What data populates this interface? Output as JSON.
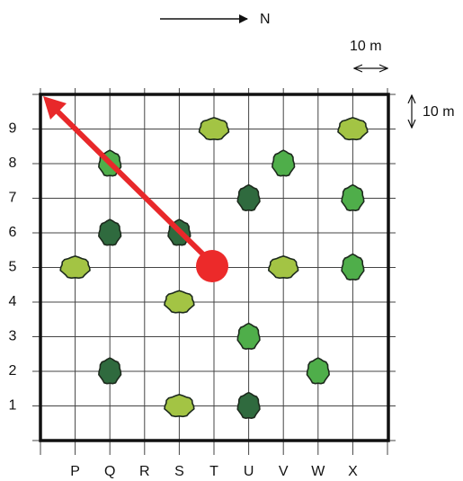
{
  "north_label": "N",
  "scale": {
    "horizontal": "10 m",
    "vertical": "10 m"
  },
  "columns": [
    "P",
    "Q",
    "R",
    "S",
    "T",
    "U",
    "V",
    "W",
    "X"
  ],
  "rows": [
    1,
    2,
    3,
    4,
    5,
    6,
    7,
    8,
    9
  ]
}
